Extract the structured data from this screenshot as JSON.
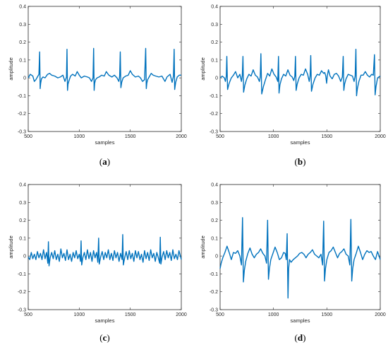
{
  "chart_data": [
    {
      "type": "line",
      "caption": "a",
      "xlabel": "samples",
      "ylabel": "amplitude",
      "xlim": [
        500,
        2000
      ],
      "ylim": [
        -0.3,
        0.4
      ],
      "xticks": [
        500,
        1000,
        1500,
        2000
      ],
      "yticks": [
        -0.3,
        -0.2,
        -0.1,
        0,
        0.1,
        0.2,
        0.3,
        0.4
      ],
      "ytick_labels": [
        "-0.3",
        "-0.2",
        "-0.1",
        "0",
        "0.1",
        "0.2",
        "0.3",
        "0.4"
      ],
      "grid": false,
      "color": "#0072BD",
      "series": [
        {
          "x": [
            500,
            520,
            545,
            560,
            575,
            590,
            605,
            612,
            617,
            622,
            630,
            645,
            665,
            690,
            710,
            730,
            760,
            790,
            815,
            840,
            860,
            875,
            880,
            885,
            890,
            900,
            915,
            935,
            960,
            980,
            1000,
            1020,
            1050,
            1080,
            1100,
            1120,
            1135,
            1141,
            1146,
            1151,
            1160,
            1175,
            1195,
            1220,
            1245,
            1265,
            1290,
            1320,
            1345,
            1370,
            1388,
            1396,
            1402,
            1408,
            1416,
            1430,
            1455,
            1480,
            1500,
            1520,
            1550,
            1580,
            1600,
            1620,
            1640,
            1651,
            1657,
            1662,
            1670,
            1685,
            1705,
            1725,
            1750,
            1780,
            1810,
            1840,
            1860,
            1890,
            1910,
            1923,
            1930,
            1935,
            1945,
            1960,
            1980,
            2000
          ],
          "y": [
            0,
            0.02,
            0.01,
            -0.02,
            -0.01,
            0.005,
            0.02,
            0.145,
            -0.06,
            -0.03,
            -0.005,
            0.005,
            0,
            0.02,
            0.025,
            0.015,
            0.01,
            0,
            0.005,
            0.015,
            -0.02,
            0.005,
            0.16,
            -0.07,
            -0.035,
            -0.015,
            0.01,
            0.02,
            0.01,
            0.035,
            0.015,
            0,
            0.01,
            0.005,
            0,
            -0.02,
            0,
            0.165,
            -0.07,
            -0.03,
            -0.01,
            0,
            0.005,
            0.015,
            0.01,
            0.035,
            0.015,
            0.005,
            0.015,
            0,
            -0.02,
            0.01,
            0.145,
            -0.055,
            -0.025,
            0,
            0.01,
            0.015,
            0.04,
            0.02,
            0.005,
            0.01,
            0,
            -0.02,
            -0.01,
            0.165,
            -0.06,
            -0.03,
            -0.01,
            0.005,
            0.025,
            0.015,
            0.01,
            0.005,
            0.01,
            -0.02,
            0.005,
            0.02,
            -0.025,
            0.01,
            0.16,
            -0.065,
            -0.025,
            0.005,
            0.015,
            0.015
          ]
        }
      ]
    },
    {
      "type": "line",
      "caption": "b",
      "xlabel": "samples",
      "ylabel": "amplitude",
      "xlim": [
        500,
        2000
      ],
      "ylim": [
        -0.3,
        0.4
      ],
      "xticks": [
        500,
        1000,
        1500,
        2000
      ],
      "yticks": [
        -0.3,
        -0.2,
        -0.1,
        0,
        0.1,
        0.2,
        0.3,
        0.4
      ],
      "ytick_labels": [
        "-0.3",
        "-0.2",
        "-0.1",
        "0",
        "0.1",
        "0.2",
        "0.3",
        "0.4"
      ],
      "grid": false,
      "color": "#0072BD",
      "series": [
        {
          "x": [
            500,
            520,
            540,
            550,
            558,
            563,
            570,
            585,
            605,
            625,
            645,
            665,
            685,
            700,
            708,
            714,
            720,
            732,
            750,
            770,
            790,
            810,
            830,
            850,
            868,
            876,
            882,
            890,
            905,
            925,
            945,
            965,
            985,
            1005,
            1025,
            1040,
            1047,
            1052,
            1060,
            1075,
            1095,
            1115,
            1135,
            1155,
            1175,
            1190,
            1200,
            1206,
            1212,
            1222,
            1240,
            1260,
            1280,
            1300,
            1320,
            1335,
            1343,
            1349,
            1356,
            1370,
            1390,
            1410,
            1430,
            1450,
            1470,
            1480,
            1490,
            1498,
            1505,
            1515,
            1530,
            1550,
            1570,
            1590,
            1610,
            1630,
            1645,
            1653,
            1659,
            1666,
            1680,
            1700,
            1720,
            1740,
            1755,
            1765,
            1772,
            1778,
            1786,
            1800,
            1820,
            1840,
            1860,
            1880,
            1900,
            1920,
            1935,
            1946,
            1952,
            1960,
            1975,
            2000
          ],
          "y": [
            0,
            0.01,
            0,
            -0.02,
            0.01,
            0.12,
            -0.065,
            -0.03,
            0,
            0.015,
            0.035,
            0,
            0.02,
            -0.02,
            0.015,
            0.12,
            -0.08,
            -0.04,
            -0.005,
            0.02,
            0.01,
            0.045,
            0.015,
            0.005,
            -0.02,
            0.005,
            0.135,
            -0.09,
            -0.05,
            -0.01,
            0.025,
            0.01,
            0.05,
            0.02,
            0.005,
            -0.02,
            0.12,
            -0.085,
            -0.04,
            -0.005,
            0.02,
            0.01,
            0.045,
            0.015,
            0.005,
            -0.015,
            0.01,
            0.12,
            -0.07,
            -0.035,
            0,
            0.02,
            0.015,
            0.05,
            0.02,
            -0.02,
            0.01,
            0.125,
            -0.075,
            -0.035,
            0,
            0.02,
            0.015,
            0.04,
            0.025,
            0.03,
            0.01,
            -0.03,
            0.015,
            0.045,
            0.01,
            -0.005,
            0.02,
            0.025,
            0.01,
            -0.02,
            0.005,
            0.12,
            -0.07,
            -0.035,
            -0.005,
            0.02,
            0.015,
            0.01,
            -0.02,
            0.01,
            0.16,
            -0.1,
            -0.06,
            -0.02,
            0.015,
            0.015,
            0.035,
            0.015,
            0.005,
            0.02,
            0.015,
            0.13,
            -0.095,
            -0.05,
            0,
            0.01
          ]
        }
      ]
    },
    {
      "type": "line",
      "caption": "c",
      "xlabel": "samples",
      "ylabel": "amplitude",
      "xlim": [
        500,
        2000
      ],
      "ylim": [
        -0.3,
        0.4
      ],
      "xticks": [
        500,
        1000,
        1500,
        2000
      ],
      "yticks": [
        -0.3,
        -0.2,
        -0.1,
        0,
        0.1,
        0.2,
        0.3,
        0.4
      ],
      "ytick_labels": [
        "-0.3",
        "-0.2",
        "-0.1",
        "0",
        "0.1",
        "0.2",
        "0.3",
        "0.4"
      ],
      "grid": false,
      "color": "#0072BD",
      "series": [
        {
          "x": [
            500,
            515,
            530,
            545,
            560,
            575,
            590,
            605,
            620,
            635,
            650,
            665,
            680,
            692,
            698,
            704,
            715,
            730,
            745,
            760,
            775,
            790,
            805,
            820,
            835,
            850,
            865,
            880,
            895,
            910,
            925,
            940,
            955,
            970,
            985,
            1000,
            1012,
            1018,
            1024,
            1035,
            1050,
            1065,
            1080,
            1095,
            1110,
            1125,
            1140,
            1155,
            1170,
            1182,
            1190,
            1196,
            1210,
            1225,
            1240,
            1255,
            1270,
            1285,
            1300,
            1315,
            1330,
            1345,
            1360,
            1375,
            1390,
            1405,
            1420,
            1426,
            1432,
            1445,
            1460,
            1475,
            1490,
            1505,
            1520,
            1535,
            1550,
            1565,
            1580,
            1595,
            1610,
            1625,
            1640,
            1655,
            1670,
            1685,
            1700,
            1715,
            1730,
            1745,
            1760,
            1775,
            1788,
            1794,
            1800,
            1812,
            1827,
            1842,
            1857,
            1872,
            1887,
            1902,
            1917,
            1932,
            1947,
            1962,
            1977,
            2000
          ],
          "y": [
            -0.005,
            -0.02,
            0.02,
            -0.015,
            0.01,
            -0.02,
            0.025,
            -0.01,
            0.015,
            -0.02,
            0.035,
            -0.015,
            0.02,
            -0.04,
            0.08,
            -0.055,
            -0.01,
            0.02,
            -0.015,
            0.03,
            -0.02,
            0.01,
            -0.03,
            0.04,
            -0.01,
            0.015,
            -0.025,
            0.035,
            -0.02,
            0.01,
            -0.03,
            0.02,
            -0.01,
            0.03,
            -0.015,
            0.01,
            -0.03,
            0.085,
            -0.05,
            -0.01,
            0.02,
            -0.02,
            0.035,
            -0.015,
            0.02,
            -0.03,
            0.03,
            -0.01,
            0.02,
            -0.035,
            0.1,
            -0.045,
            -0.005,
            0.025,
            -0.02,
            0.02,
            -0.01,
            0.035,
            -0.02,
            0.015,
            -0.025,
            0.03,
            -0.01,
            0.02,
            -0.03,
            0.015,
            -0.02,
            0.12,
            -0.05,
            -0.01,
            0.025,
            -0.02,
            0.03,
            -0.015,
            0.015,
            -0.03,
            0.03,
            -0.01,
            0.025,
            -0.02,
            0.01,
            -0.035,
            0.03,
            -0.015,
            0.02,
            -0.025,
            0.035,
            -0.01,
            0.015,
            -0.03,
            0.02,
            -0.01,
            -0.04,
            0.105,
            -0.045,
            -0.005,
            0.025,
            -0.02,
            0.03,
            -0.01,
            0.02,
            -0.025,
            0.035,
            -0.015,
            0.01,
            -0.02,
            0.03,
            -0.02
          ]
        }
      ]
    },
    {
      "type": "line",
      "caption": "d",
      "xlabel": "samples",
      "ylabel": "amplitude",
      "xlim": [
        500,
        2000
      ],
      "ylim": [
        -0.3,
        0.4
      ],
      "xticks": [
        500,
        1000,
        1500,
        2000
      ],
      "yticks": [
        -0.3,
        -0.2,
        -0.1,
        0,
        0.1,
        0.2,
        0.3,
        0.4
      ],
      "ytick_labels": [
        "-0.3",
        "-0.2",
        "-0.1",
        "0",
        "0.1",
        "0.2",
        "0.3",
        "0.4"
      ],
      "grid": false,
      "color": "#0072BD",
      "series": [
        {
          "x": [
            500,
            510,
            525,
            545,
            565,
            585,
            605,
            625,
            645,
            665,
            685,
            700,
            710,
            718,
            727,
            740,
            760,
            780,
            800,
            820,
            840,
            860,
            880,
            900,
            920,
            935,
            945,
            953,
            962,
            975,
            995,
            1015,
            1035,
            1055,
            1075,
            1095,
            1110,
            1120,
            1128,
            1136,
            1142,
            1150,
            1165,
            1185,
            1205,
            1225,
            1245,
            1265,
            1285,
            1305,
            1325,
            1345,
            1365,
            1385,
            1405,
            1425,
            1445,
            1460,
            1470,
            1478,
            1487,
            1500,
            1520,
            1540,
            1560,
            1580,
            1600,
            1620,
            1640,
            1660,
            1680,
            1700,
            1715,
            1725,
            1733,
            1742,
            1755,
            1775,
            1795,
            1815,
            1835,
            1855,
            1875,
            1895,
            1915,
            1935,
            1955,
            1975,
            2000
          ],
          "y": [
            -0.07,
            -0.04,
            -0.01,
            0.02,
            0.055,
            0.02,
            -0.02,
            0.02,
            0.015,
            0.03,
            0,
            -0.05,
            0.215,
            -0.145,
            -0.08,
            -0.03,
            0.015,
            0.045,
            0.01,
            -0.01,
            0.01,
            0.02,
            0.04,
            0.015,
            0,
            -0.04,
            0.2,
            -0.13,
            -0.07,
            -0.02,
            0.015,
            0.05,
            0.02,
            -0.02,
            -0.01,
            0.02,
            0.015,
            -0.02,
            0.125,
            -0.235,
            -0.07,
            -0.02,
            -0.035,
            -0.02,
            -0.01,
            0,
            0.015,
            0.02,
            0.01,
            -0.01,
            0.01,
            0.02,
            0.035,
            0.01,
            0,
            -0.01,
            0.01,
            -0.05,
            0.195,
            -0.14,
            -0.07,
            -0.02,
            0.02,
            0.03,
            0.05,
            0.02,
            -0.01,
            0.015,
            0.025,
            0.04,
            0.01,
            0,
            -0.05,
            0.205,
            -0.14,
            -0.07,
            -0.02,
            0.015,
            0.055,
            0.02,
            -0.02,
            0.01,
            0.03,
            0.02,
            0.025,
            0,
            -0.02,
            0.025,
            -0.02
          ]
        }
      ]
    }
  ]
}
